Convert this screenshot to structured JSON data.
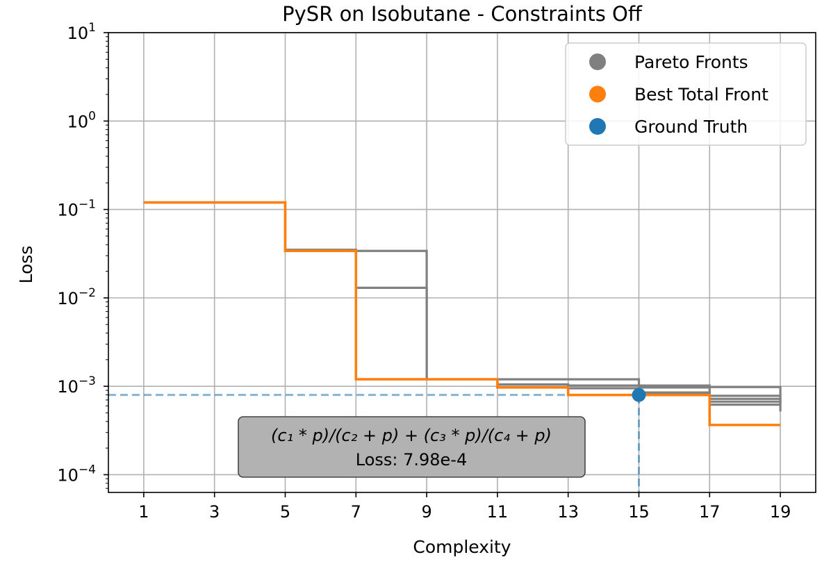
{
  "chart_data": {
    "type": "line",
    "title": "PySR on Isobutane - Constraints Off",
    "xlabel": "Complexity",
    "ylabel": "Loss",
    "xlim": [
      0,
      20
    ],
    "ylim": [
      6.3e-05,
      10
    ],
    "yscale": "log",
    "grid": true,
    "legend_position": "top-right",
    "x_ticks": [
      {
        "value": 1,
        "label": "1"
      },
      {
        "value": 3,
        "label": "3"
      },
      {
        "value": 5,
        "label": "5"
      },
      {
        "value": 7,
        "label": "7"
      },
      {
        "value": 9,
        "label": "9"
      },
      {
        "value": 11,
        "label": "11"
      },
      {
        "value": 13,
        "label": "13"
      },
      {
        "value": 15,
        "label": "15"
      },
      {
        "value": 17,
        "label": "17"
      },
      {
        "value": 19,
        "label": "19"
      }
    ],
    "y_ticks": [
      {
        "value": 0.0001,
        "base": "10",
        "exp": "−4"
      },
      {
        "value": 0.001,
        "base": "10",
        "exp": "−3"
      },
      {
        "value": 0.01,
        "base": "10",
        "exp": "−2"
      },
      {
        "value": 0.1,
        "base": "10",
        "exp": "−1"
      },
      {
        "value": 1,
        "base": "10",
        "exp": "0"
      },
      {
        "value": 10,
        "base": "10",
        "exp": "1"
      }
    ],
    "legend": [
      {
        "label": "Pareto Fronts",
        "color": "#808080"
      },
      {
        "label": "Best Total Front",
        "color": "#ff7f0e"
      },
      {
        "label": "Ground Truth",
        "color": "#1f77b4"
      }
    ],
    "pareto_fronts": [
      {
        "x": [
          1,
          5,
          5,
          7,
          7,
          9,
          9
        ],
        "y": [
          0.12,
          0.12,
          0.035,
          0.035,
          0.034,
          0.034,
          0.0012
        ]
      },
      {
        "x": [
          7,
          9,
          9
        ],
        "y": [
          0.013,
          0.013,
          0.0012
        ]
      },
      {
        "x": [
          11,
          13,
          13,
          15,
          15,
          17,
          17,
          19,
          19
        ],
        "y": [
          0.0012,
          0.0012,
          0.0012,
          0.0012,
          0.00102,
          0.00102,
          0.00098,
          0.00098,
          0.00078
        ]
      },
      {
        "x": [
          11,
          13,
          13,
          15,
          15,
          17,
          17,
          19,
          19
        ],
        "y": [
          0.00105,
          0.00105,
          0.00102,
          0.00102,
          0.00097,
          0.00097,
          0.00078,
          0.00078,
          0.00071
        ]
      },
      {
        "x": [
          13,
          15,
          15,
          17,
          17,
          19,
          19
        ],
        "y": [
          0.00095,
          0.00095,
          0.00085,
          0.00085,
          0.00072,
          0.00072,
          0.00065
        ]
      },
      {
        "x": [
          15,
          17,
          17,
          19,
          19
        ],
        "y": [
          0.00082,
          0.00082,
          0.00067,
          0.00067,
          0.00062
        ]
      },
      {
        "x": [
          17,
          19,
          19
        ],
        "y": [
          0.00062,
          0.00062,
          0.00052
        ]
      }
    ],
    "best_front": {
      "x": [
        1,
        5,
        5,
        7,
        7,
        11,
        11,
        13,
        13,
        17,
        17,
        19
      ],
      "y": [
        0.12,
        0.12,
        0.034,
        0.034,
        0.0012,
        0.0012,
        0.00097,
        0.00097,
        0.000798,
        0.000798,
        0.000365,
        0.000365
      ]
    },
    "ground_truth": {
      "x": 15,
      "y": 0.000798
    },
    "annotation": {
      "expression": "(c₁ * p)/(c₂ + p) + (c₃ * p)/(c₄ + p)",
      "loss_text": "Loss: 7.98e-4"
    }
  }
}
